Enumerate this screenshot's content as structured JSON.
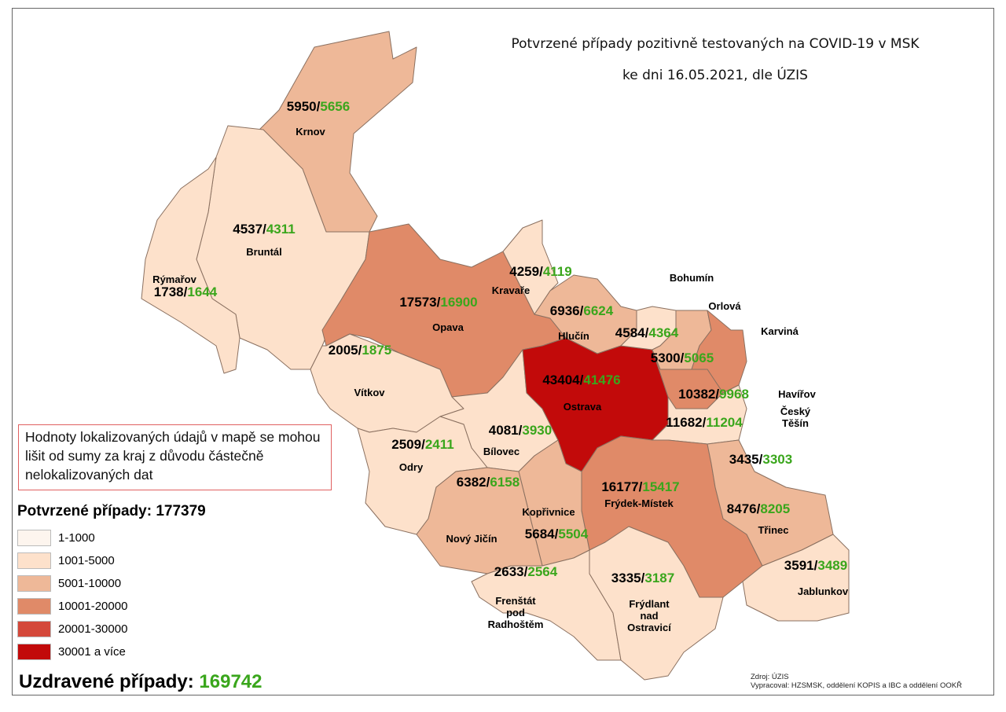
{
  "title_line1": "Potvrzené případy pozitivně testovaných na COVID-19 v MSK",
  "title_line2": "ke dni 16.05.2021, dle ÚZIS",
  "note": "Hodnoty lokalizovaných údajů v mapě se mohou lišit od sumy za kraj z důvodu částečně nelokalizovaných dat",
  "confirmed_label": "Potvrzené případy: ",
  "confirmed_total": "177379",
  "recovered_label": "Uzdravené případy: ",
  "recovered_total": "169742",
  "legend": [
    {
      "label": "1-1000",
      "color": "#fdf5ee"
    },
    {
      "label": "1001-5000",
      "color": "#fde1cb"
    },
    {
      "label": "5001-10000",
      "color": "#eeb898"
    },
    {
      "label": "10001-20000",
      "color": "#e08a68"
    },
    {
      "label": "20001-30000",
      "color": "#d4483a"
    },
    {
      "label": "30001 a více",
      "color": "#c20a0a"
    }
  ],
  "recovered_color": "#3aa61c",
  "source_line1": "Zdroj: ÚZIS",
  "source_line2": "Vypracoval: HZSMSK, oddělení KOPIS a IBC a oddělení OOKŘ",
  "regions": [
    {
      "name": "Krnov",
      "confirmed": "5950",
      "recovered": "5656",
      "class": 2
    },
    {
      "name": "Bruntál",
      "confirmed": "4537",
      "recovered": "4311",
      "class": 1
    },
    {
      "name": "Rýmařov",
      "confirmed": "1738",
      "recovered": "1644",
      "class": 1
    },
    {
      "name": "Opava",
      "confirmed": "17573",
      "recovered": "16900",
      "class": 3
    },
    {
      "name": "Kravaře",
      "confirmed": "4259",
      "recovered": "4119",
      "class": 1
    },
    {
      "name": "Hlučín",
      "confirmed": "6936",
      "recovered": "6624",
      "class": 2
    },
    {
      "name": "Vítkov",
      "confirmed": "2005",
      "recovered": "1875",
      "class": 1
    },
    {
      "name": "Bílovec",
      "confirmed": "4081",
      "recovered": "3930",
      "class": 1
    },
    {
      "name": "Odry",
      "confirmed": "2509",
      "recovered": "2411",
      "class": 1
    },
    {
      "name": "Ostrava",
      "confirmed": "43404",
      "recovered": "41476",
      "class": 5
    },
    {
      "name": "Bohumín",
      "confirmed": "4584",
      "recovered": "4364",
      "class": 1
    },
    {
      "name": "Orlová",
      "confirmed": "5300",
      "recovered": "5065",
      "class": 2
    },
    {
      "name": "Karviná",
      "confirmed": "11682",
      "recovered": "11204",
      "class": 3
    },
    {
      "name": "Havířov",
      "confirmed": "10382",
      "recovered": "9968",
      "class": 3
    },
    {
      "name": "Český Těšín",
      "confirmed": "3435",
      "recovered": "3303",
      "class": 1
    },
    {
      "name": "Frýdek-Místek",
      "confirmed": "16177",
      "recovered": "15417",
      "class": 3
    },
    {
      "name": "Třinec",
      "confirmed": "8476",
      "recovered": "8205",
      "class": 2
    },
    {
      "name": "Jablunkov",
      "confirmed": "3591",
      "recovered": "3489",
      "class": 1
    },
    {
      "name": "Kopřivnice",
      "confirmed": "6382",
      "recovered": "6158",
      "class": 2
    },
    {
      "name": "Nový Jičín",
      "confirmed": "5684",
      "recovered": "5504",
      "class": 2
    },
    {
      "name": "Frenštát pod Radhoštěm",
      "confirmed": "2633",
      "recovered": "2564",
      "class": 1
    },
    {
      "name": "Frýdlant nad Ostravicí",
      "confirmed": "3335",
      "recovered": "3187",
      "class": 1
    }
  ]
}
